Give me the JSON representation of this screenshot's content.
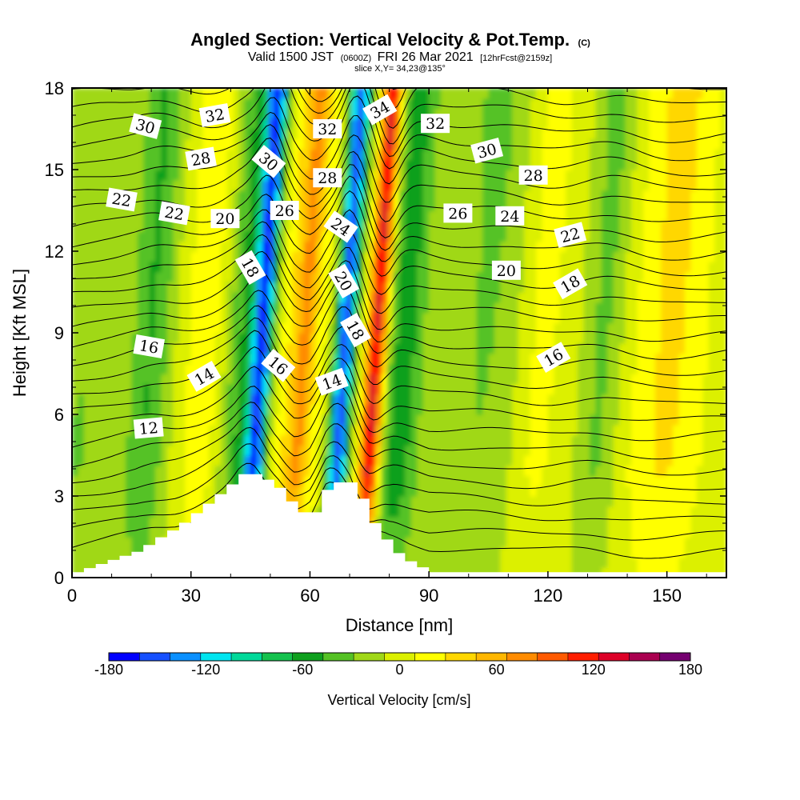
{
  "chart_data": {
    "type": "heatmap",
    "title": {
      "main": "Angled Section: Vertical Velocity & Pot.Temp.",
      "copyright": "(C)",
      "valid_prefix": "Valid 1500 JST",
      "valid_utc": "(0600Z)",
      "valid_suffix": "FRI 26 Mar 2021",
      "forecast": "[12hrFcst@2159z]",
      "slice": "slice X,Y= 34,23@135°"
    },
    "xlabel": "Distance [nm]",
    "ylabel": "Height [Kft MSL]",
    "xlim": [
      0,
      165
    ],
    "ylim": [
      0,
      18
    ],
    "xticks": [
      "0",
      "30",
      "60",
      "90",
      "120",
      "150"
    ],
    "yticks": [
      "0",
      "3",
      "6",
      "9",
      "12",
      "15",
      "18"
    ],
    "x_tick_values": [
      0,
      30,
      60,
      90,
      120,
      150
    ],
    "y_tick_values": [
      0,
      3,
      6,
      9,
      12,
      15,
      18
    ],
    "colorbar": {
      "title": "Vertical Velocity [cm/s]",
      "range": [
        -180,
        180
      ],
      "step": 20,
      "tick_labels": [
        "-180",
        "-120",
        "-60",
        "0",
        "60",
        "120",
        "180"
      ],
      "tick_values": [
        -180,
        -120,
        -60,
        0,
        60,
        120,
        180
      ],
      "colors": [
        "#0000ff",
        "#1650ff",
        "#0a90ff",
        "#00e5f0",
        "#00d99a",
        "#15c24e",
        "#0fa01e",
        "#55c225",
        "#a0d818",
        "#dcf000",
        "#ffff00",
        "#ffd700",
        "#ffb700",
        "#ff8c00",
        "#ff5a00",
        "#ff1e00",
        "#dd0028",
        "#aa0050",
        "#750070"
      ]
    },
    "vertical_velocity_bands": [
      {
        "x_center": 4,
        "half_width": 8,
        "w": -25
      },
      {
        "x_center": 20,
        "half_width": 5,
        "w": -40
      },
      {
        "x_center": 33,
        "half_width": 6,
        "w": 25
      },
      {
        "x_center": 43,
        "half_width": 4,
        "w": -45
      },
      {
        "x_center": 48,
        "half_width": 2.5,
        "w": -160
      },
      {
        "x_center": 55,
        "half_width": 3,
        "w": 35
      },
      {
        "x_center": 59,
        "half_width": 2.5,
        "w": 80
      },
      {
        "x_center": 63,
        "half_width": 2,
        "w": 20
      },
      {
        "x_center": 69,
        "half_width": 2.5,
        "w": -160
      },
      {
        "x_center": 77,
        "half_width": 2.5,
        "w": 150
      },
      {
        "x_center": 84,
        "half_width": 5,
        "w": -50
      },
      {
        "x_center": 103,
        "half_width": 10,
        "w": -25
      },
      {
        "x_center": 118,
        "half_width": 6,
        "w": 25
      },
      {
        "x_center": 134,
        "half_width": 5,
        "w": -30
      },
      {
        "x_center": 150,
        "half_width": 10,
        "w": 40
      }
    ],
    "terrain_profile_kft": [
      {
        "x": 0,
        "h": 0.2
      },
      {
        "x": 10,
        "h": 0.7
      },
      {
        "x": 16,
        "h": 1.0
      },
      {
        "x": 20,
        "h": 1.4
      },
      {
        "x": 26,
        "h": 1.9
      },
      {
        "x": 32,
        "h": 2.6
      },
      {
        "x": 38,
        "h": 3.3
      },
      {
        "x": 42,
        "h": 3.8
      },
      {
        "x": 46,
        "h": 3.8
      },
      {
        "x": 52,
        "h": 3.2
      },
      {
        "x": 56,
        "h": 2.4
      },
      {
        "x": 60,
        "h": 2.4
      },
      {
        "x": 64,
        "h": 3.5
      },
      {
        "x": 70,
        "h": 3.5
      },
      {
        "x": 75,
        "h": 2.0
      },
      {
        "x": 80,
        "h": 1.0
      },
      {
        "x": 85,
        "h": 0.5
      },
      {
        "x": 90,
        "h": 0.2
      },
      {
        "x": 165,
        "h": 0.2
      }
    ],
    "potential_temperature_contour_labels": [
      {
        "text": "30",
        "x": 18.5,
        "y": 16.6,
        "angle": 15
      },
      {
        "text": "32",
        "x": 36,
        "y": 17.0,
        "angle": -10
      },
      {
        "text": "28",
        "x": 32.5,
        "y": 15.4,
        "angle": -10
      },
      {
        "text": "22",
        "x": 12.5,
        "y": 13.9,
        "angle": 10
      },
      {
        "text": "22",
        "x": 25.8,
        "y": 13.4,
        "angle": 10
      },
      {
        "text": "20",
        "x": 38.6,
        "y": 13.2,
        "angle": 0
      },
      {
        "text": "30",
        "x": 49.6,
        "y": 15.3,
        "angle": 40
      },
      {
        "text": "26",
        "x": 53.6,
        "y": 13.5,
        "angle": 0
      },
      {
        "text": "18",
        "x": 45,
        "y": 11.4,
        "angle": 60
      },
      {
        "text": "32",
        "x": 64.4,
        "y": 16.5,
        "angle": 0
      },
      {
        "text": "28",
        "x": 64.4,
        "y": 14.7,
        "angle": 0
      },
      {
        "text": "24",
        "x": 67.8,
        "y": 12.9,
        "angle": 35
      },
      {
        "text": "20",
        "x": 68.5,
        "y": 10.9,
        "angle": 60
      },
      {
        "text": "18",
        "x": 71.5,
        "y": 9.1,
        "angle": 60
      },
      {
        "text": "34",
        "x": 77.6,
        "y": 17.2,
        "angle": -30
      },
      {
        "text": "16",
        "x": 52,
        "y": 7.8,
        "angle": 40
      },
      {
        "text": "14",
        "x": 65.5,
        "y": 7.2,
        "angle": -20
      },
      {
        "text": "32",
        "x": 91.6,
        "y": 16.7,
        "angle": 0
      },
      {
        "text": "30",
        "x": 104.6,
        "y": 15.7,
        "angle": -15
      },
      {
        "text": "28",
        "x": 116.3,
        "y": 14.8,
        "angle": 0
      },
      {
        "text": "26",
        "x": 97.3,
        "y": 13.4,
        "angle": 0
      },
      {
        "text": "24",
        "x": 110.4,
        "y": 13.3,
        "angle": 0
      },
      {
        "text": "22",
        "x": 125.6,
        "y": 12.6,
        "angle": -15
      },
      {
        "text": "20",
        "x": 109.5,
        "y": 11.3,
        "angle": 0
      },
      {
        "text": "18",
        "x": 125.6,
        "y": 10.8,
        "angle": -30
      },
      {
        "text": "16",
        "x": 121.4,
        "y": 8.1,
        "angle": -30
      },
      {
        "text": "16",
        "x": 19.4,
        "y": 8.5,
        "angle": 10
      },
      {
        "text": "14",
        "x": 33.3,
        "y": 7.4,
        "angle": -30
      },
      {
        "text": "12",
        "x": 19.3,
        "y": 5.5,
        "angle": -5
      }
    ]
  }
}
